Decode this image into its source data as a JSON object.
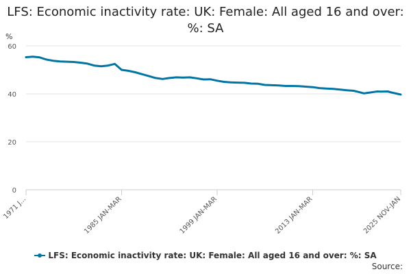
{
  "chart_data": {
    "type": "line",
    "title": "LFS: Economic inactivity rate: UK: Female: All aged 16 and over: %: SA",
    "ylabel": "%",
    "xlabel": "",
    "ylim": [
      0,
      60
    ],
    "yticks": [
      0,
      20,
      40,
      60
    ],
    "xticks": [
      "1971 JAN-MAR",
      "1985 JAN-MAR",
      "1999 JAN-MAR",
      "2013 JAN-MAR",
      "2025 NOV-JAN"
    ],
    "xtick_labels_shown": [
      "1971 J...",
      "1985 JAN-MAR",
      "1999 JAN-MAR",
      "2013 JAN-MAR",
      "2025 NOV-JAN"
    ],
    "xrange": [
      1971.0,
      2025.9
    ],
    "grid": true,
    "series": [
      {
        "name": "LFS: Economic inactivity rate: UK: Female: All aged 16 and over: %: SA",
        "color": "#0075a3",
        "x": [
          1971,
          1972,
          1973,
          1974,
          1975,
          1976,
          1977,
          1978,
          1979,
          1980,
          1981,
          1982,
          1983,
          1984,
          1985,
          1986,
          1987,
          1988,
          1989,
          1990,
          1991,
          1992,
          1993,
          1994,
          1995,
          1996,
          1997,
          1998,
          1999,
          2000,
          2001,
          2002,
          2003,
          2004,
          2005,
          2006,
          2007,
          2008,
          2009,
          2010,
          2011,
          2012,
          2013,
          2014,
          2015,
          2016,
          2017,
          2018,
          2019,
          2020,
          2020.5,
          2021,
          2022,
          2022.5,
          2023,
          2024,
          2024.5,
          2025,
          2025.9
        ],
        "values": [
          55.3,
          55.5,
          55.2,
          54.3,
          53.8,
          53.5,
          53.4,
          53.3,
          53.0,
          52.6,
          51.8,
          51.5,
          51.8,
          52.5,
          50.0,
          49.6,
          49.0,
          48.2,
          47.4,
          46.6,
          46.2,
          46.6,
          46.9,
          46.8,
          46.9,
          46.5,
          46.0,
          46.1,
          45.5,
          45.0,
          44.8,
          44.7,
          44.6,
          44.3,
          44.2,
          43.7,
          43.6,
          43.5,
          43.3,
          43.3,
          43.2,
          43.0,
          42.8,
          42.4,
          42.2,
          42.1,
          41.8,
          41.5,
          41.3,
          40.6,
          40.2,
          40.4,
          40.8,
          41.0,
          40.9,
          41.0,
          40.6,
          40.3,
          39.7
        ]
      }
    ]
  },
  "legend": {
    "label": "LFS: Economic inactivity rate: UK: Female: All aged 16 and over: %: SA"
  },
  "footer": {
    "source_label": "Source:"
  }
}
